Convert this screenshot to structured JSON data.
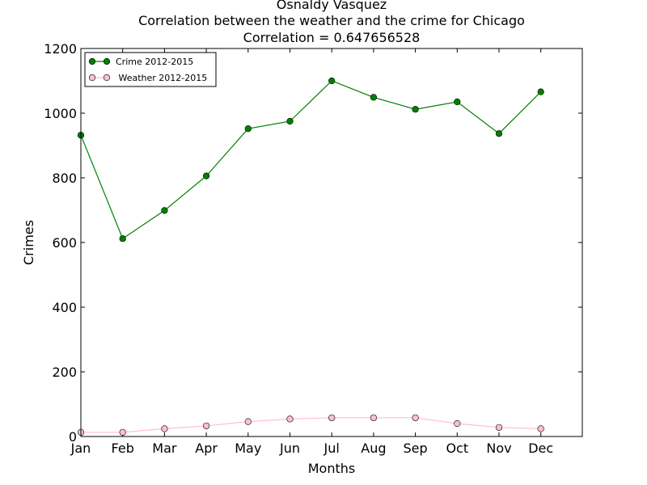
{
  "chart_data": {
    "type": "line",
    "title_lines": [
      "Osnaldy Vasquez",
      "Correlation between the weather and the crime for Chicago",
      "Correlation = 0.647656528"
    ],
    "xlabel": "Months",
    "ylabel": "Crimes",
    "categories": [
      "Jan",
      "Feb",
      "Mar",
      "Apr",
      "May",
      "Jun",
      "Jul",
      "Aug",
      "Sep",
      "Oct",
      "Nov",
      "Dec"
    ],
    "ylim": [
      0,
      1200
    ],
    "yticks": [
      0,
      200,
      400,
      600,
      800,
      1000,
      1200
    ],
    "grid": false,
    "legend_position": "top-left",
    "series": [
      {
        "name": "Crime 2012-2015",
        "color": "#008000",
        "marker": "circle",
        "values": [
          932,
          612,
          699,
          806,
          952,
          975,
          1100,
          1049,
          1012,
          1035,
          937,
          1066
        ]
      },
      {
        "name": " Weather 2012-2015",
        "color": "#ffc0cb",
        "marker": "circle",
        "values": [
          13,
          13,
          24,
          33,
          46,
          54,
          58,
          58,
          58,
          40,
          28,
          24
        ]
      }
    ]
  }
}
